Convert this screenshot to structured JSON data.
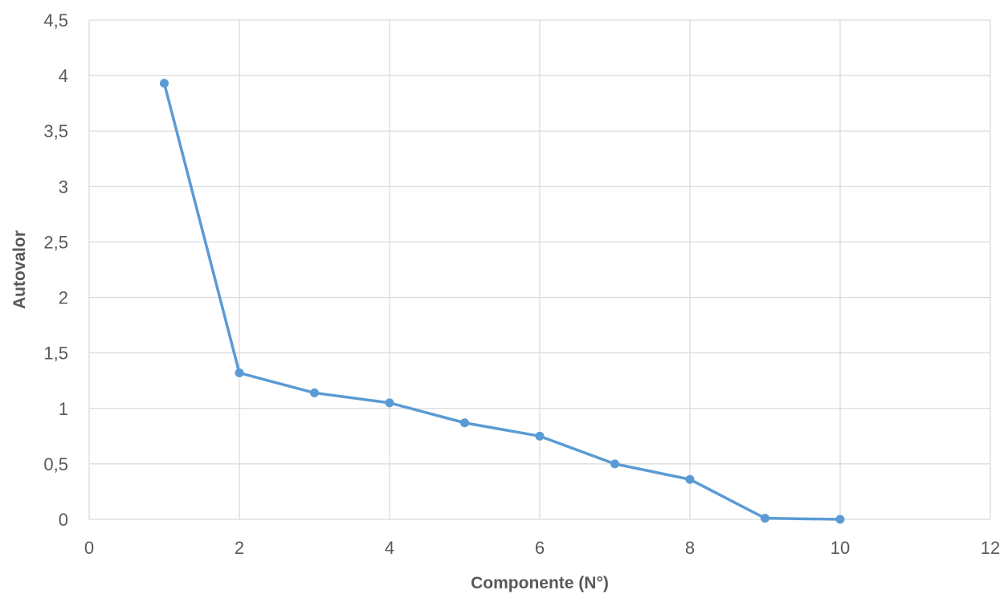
{
  "chart_data": {
    "type": "scatter",
    "mode": "lines+markers",
    "xlabel": "Componente (N°)",
    "ylabel": "Autovalor",
    "xlim": [
      0,
      12
    ],
    "ylim": [
      0,
      4.5
    ],
    "xticks": [
      0,
      2,
      4,
      6,
      8,
      10,
      12
    ],
    "xtick_labels": [
      "0",
      "2",
      "4",
      "6",
      "8",
      "10",
      "12"
    ],
    "yticks": [
      0,
      0.5,
      1,
      1.5,
      2,
      2.5,
      3,
      3.5,
      4,
      4.5
    ],
    "ytick_labels": [
      "0",
      "0,5",
      "1",
      "1,5",
      "2",
      "2,5",
      "3",
      "3,5",
      "4",
      "4,5"
    ],
    "grid": true,
    "legend": "none",
    "colors": {
      "series": "#5b9bd5",
      "grid": "#d9d9d9",
      "text": "#595959"
    },
    "series": [
      {
        "x": [
          1,
          2,
          3,
          4,
          5,
          6,
          7,
          8,
          9,
          10
        ],
        "y": [
          3.93,
          1.32,
          1.14,
          1.05,
          0.87,
          0.75,
          0.5,
          0.36,
          0.01,
          0.0
        ]
      }
    ]
  }
}
